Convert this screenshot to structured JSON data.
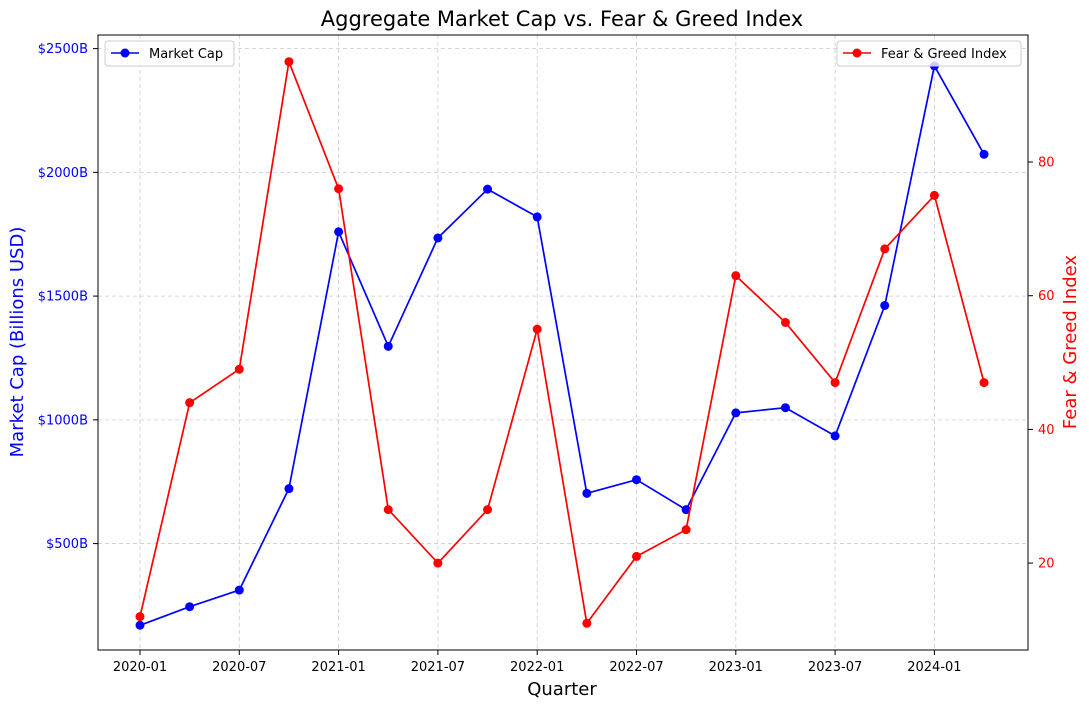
{
  "chart_data": {
    "type": "line",
    "title": "Aggregate Market Cap vs. Fear & Greed Index",
    "xlabel": "Quarter",
    "x": [
      "2020-01",
      "2020-04",
      "2020-07",
      "2020-10",
      "2021-01",
      "2021-04",
      "2021-07",
      "2021-10",
      "2022-01",
      "2022-04",
      "2022-07",
      "2022-10",
      "2023-01",
      "2023-04",
      "2023-07",
      "2023-10",
      "2024-01",
      "2024-04"
    ],
    "x_ticks": [
      "2020-01",
      "2020-07",
      "2021-01",
      "2021-07",
      "2022-01",
      "2022-07",
      "2023-01",
      "2023-07",
      "2024-01"
    ],
    "grid": true,
    "left_axis": {
      "label": "Market Cap (Billions USD)",
      "color": "#0000ff",
      "ylim": [
        70,
        2555
      ],
      "ticks": [
        500,
        1000,
        1500,
        2000,
        2500
      ],
      "tick_labels": [
        "$500B",
        "$1000B",
        "$1500B",
        "$2000B",
        "$2500B"
      ]
    },
    "right_axis": {
      "label": "Fear & Greed Index",
      "color": "#ff0000",
      "ylim": [
        7,
        99
      ],
      "ticks": [
        20,
        40,
        60,
        80
      ],
      "tick_labels": [
        "20",
        "40",
        "60",
        "80"
      ]
    },
    "series": [
      {
        "name": "Market Cap",
        "axis": "left",
        "color": "#0000ff",
        "legend": "upper left",
        "values": [
          170,
          245,
          312,
          722,
          1760,
          1297,
          1735,
          1932,
          1820,
          703,
          758,
          637,
          1028,
          1049,
          935,
          1462,
          2430,
          2073
        ]
      },
      {
        "name": "Fear & Greed Index",
        "axis": "right",
        "color": "#ff0000",
        "legend": "upper right",
        "values": [
          12,
          44,
          49,
          95,
          76,
          28,
          20,
          28,
          55,
          11,
          21,
          25,
          63,
          56,
          47,
          67,
          75,
          47
        ]
      }
    ]
  }
}
